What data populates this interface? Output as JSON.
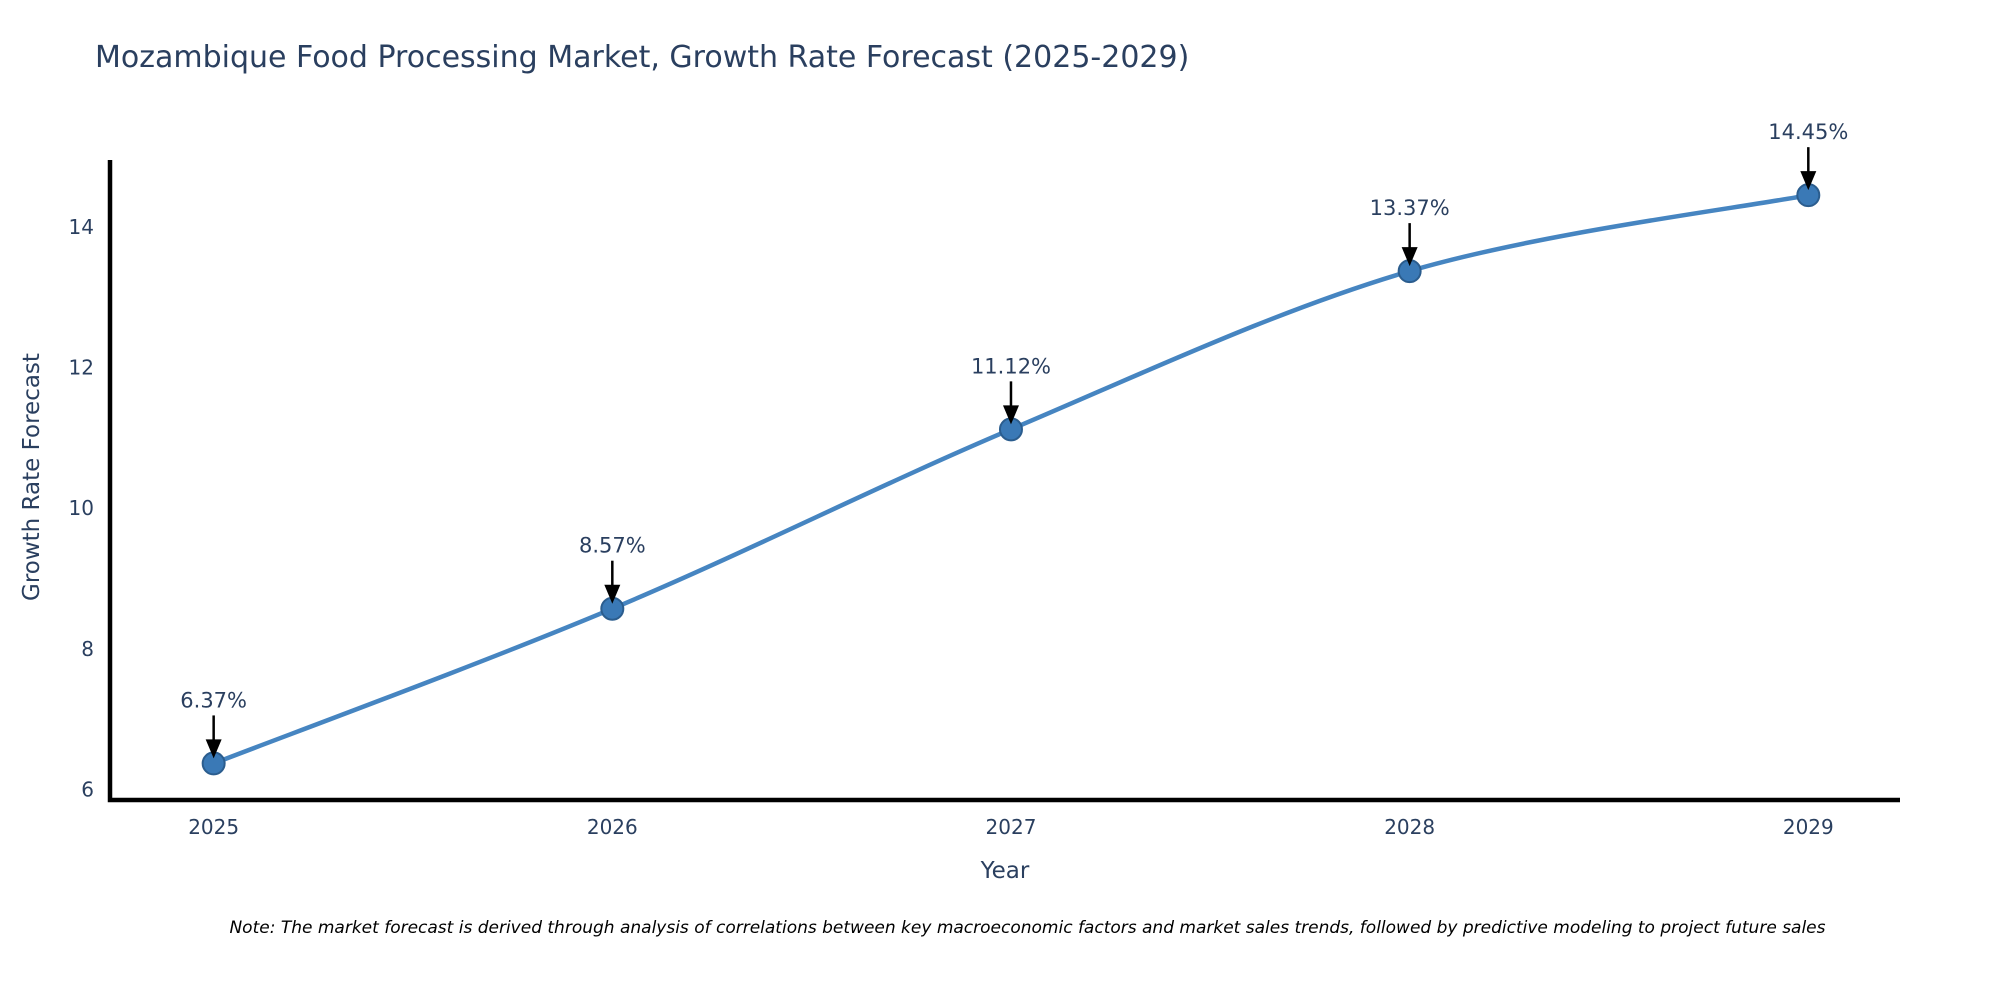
{
  "page": {
    "background": "#ffffff"
  },
  "note": "Note: The market forecast is derived through analysis of correlations between key macroeconomic factors and market sales trends, followed by predictive modeling to project future sales",
  "chart_data": {
    "type": "line",
    "title": "Mozambique Food Processing Market, Growth Rate Forecast (2025-2029)",
    "xlabel": "Year",
    "ylabel": "Growth Rate Forecast",
    "x": [
      2025,
      2026,
      2027,
      2028,
      2029
    ],
    "values": [
      6.37,
      8.57,
      11.12,
      13.37,
      14.45
    ],
    "point_labels": [
      "6.37%",
      "8.57%",
      "11.12%",
      "13.37%",
      "14.45%"
    ],
    "xticks": [
      "2025",
      "2026",
      "2027",
      "2028",
      "2029"
    ],
    "xtick_values": [
      2025,
      2026,
      2027,
      2028,
      2029
    ],
    "yticks": [
      "6",
      "8",
      "10",
      "12",
      "14"
    ],
    "ytick_values": [
      6,
      8,
      10,
      12,
      14
    ],
    "xlim": [
      2024.74,
      2029.23
    ],
    "ylim": [
      5.85,
      14.95
    ],
    "line_shape": "spline",
    "grid": false,
    "legend_position": "none",
    "colors": {
      "line": "#4685c1",
      "marker_fill": "#3a79b6",
      "marker_border": "#2b5d8e",
      "axis_line": "#000000",
      "text": "#2a3f5f",
      "annotation_arrow": "#000000",
      "note_text": "#000000",
      "background": "#ffffff"
    }
  }
}
